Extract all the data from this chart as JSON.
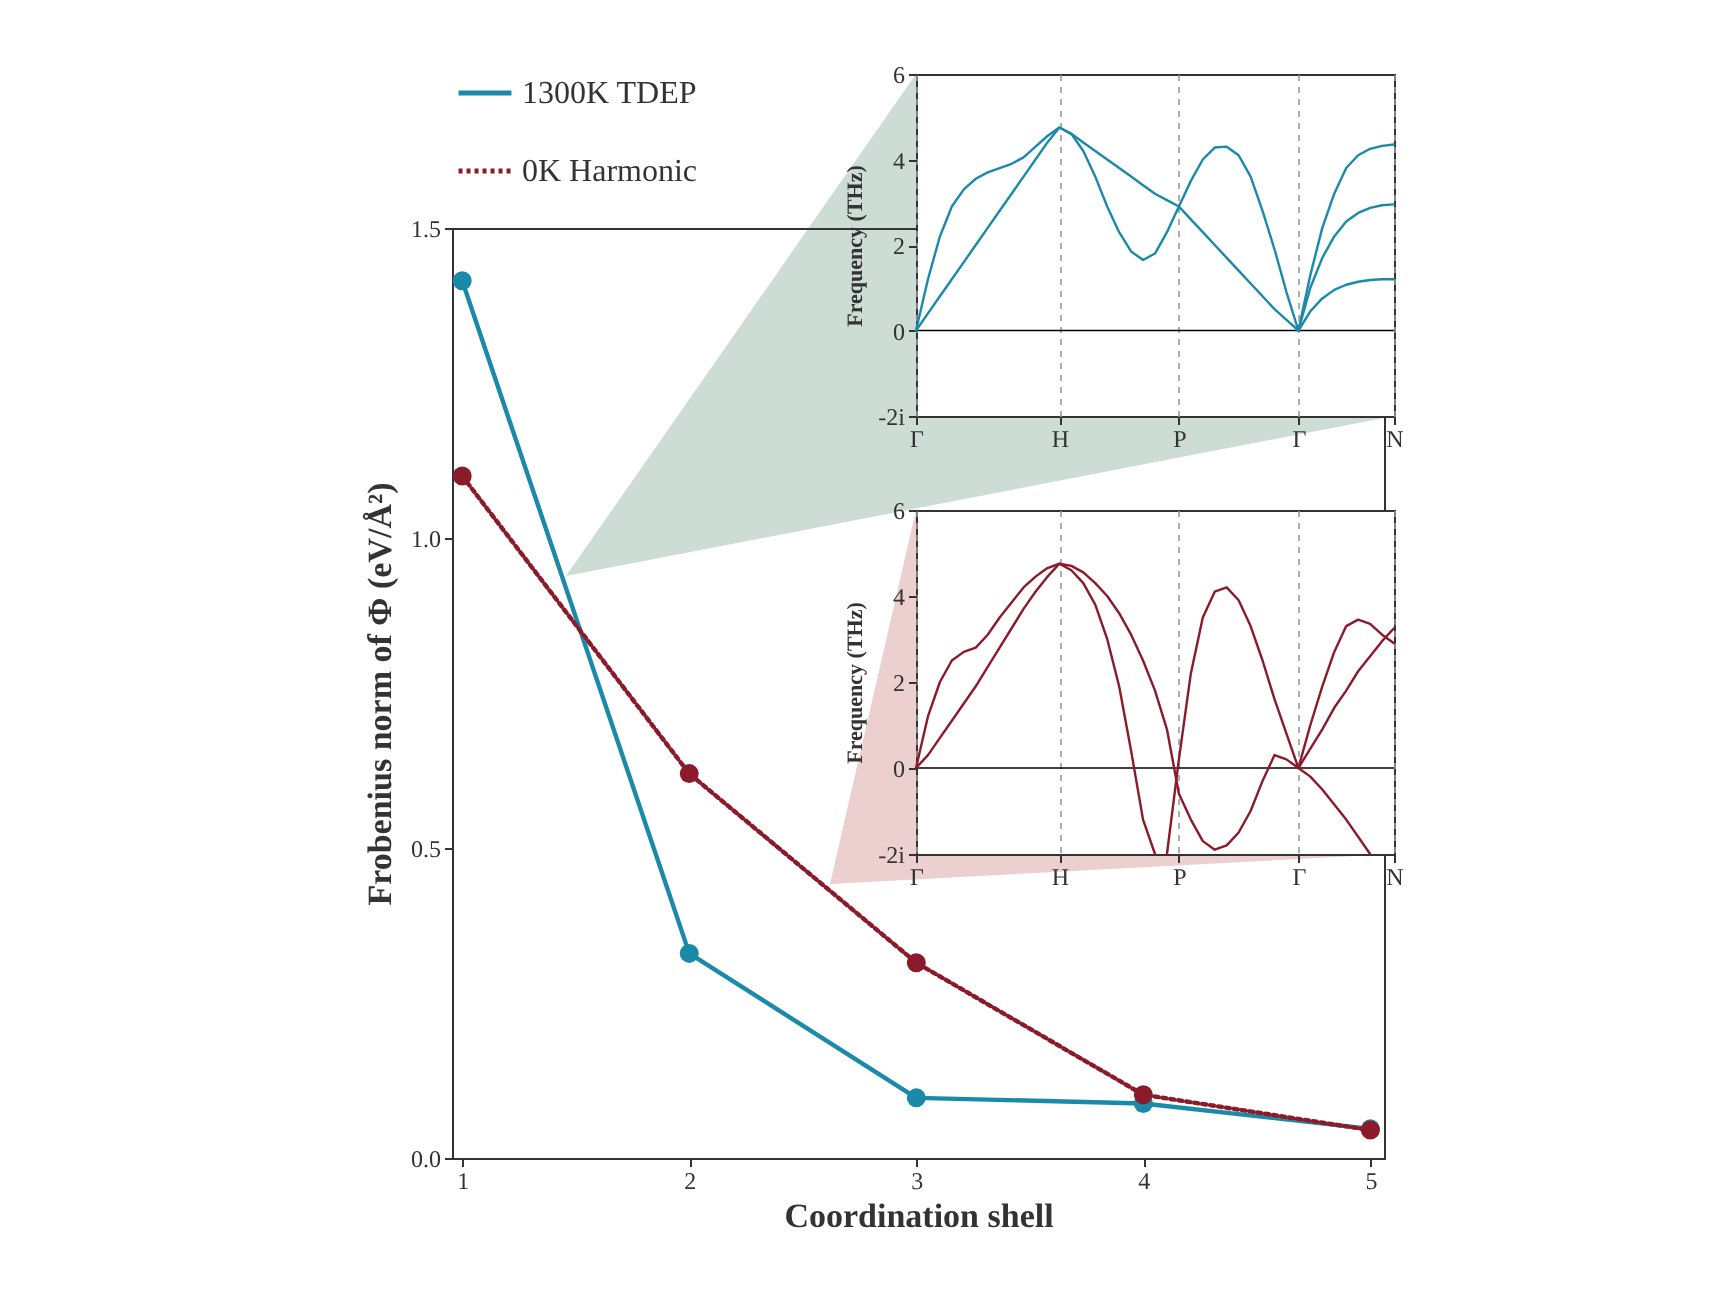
{
  "chart_data": [
    {
      "type": "line",
      "xlabel": "Coordination shell",
      "ylabel": "Frobenius norm of Φ (eV/Å²)",
      "x": [
        1,
        2,
        3,
        4,
        5
      ],
      "xlim": [
        0.955,
        5.06
      ],
      "xticks": [
        1,
        2,
        3,
        4,
        5
      ],
      "ylim": [
        0,
        1.5
      ],
      "yticks": [
        {
          "value": 0,
          "label": "0.0"
        },
        0.5,
        {
          "value": 1,
          "label": "1.0"
        },
        1.5
      ],
      "marker": "circle",
      "legend": "top left",
      "series": [
        {
          "name": "1300K TDEP",
          "color": "#1a8aa8",
          "line_style": "solid",
          "values": [
            1.415,
            0.33,
            0.097,
            0.088,
            0.047
          ]
        },
        {
          "name": "0K Harmonic",
          "color": "#8b1a2a",
          "line_style": "dotted",
          "values": [
            1.1,
            0.62,
            0.315,
            0.102,
            0.045
          ]
        }
      ]
    },
    {
      "type": "line",
      "ylabel": "Frequency (THz)",
      "categories": [
        "Γ",
        null,
        null,
        null,
        null,
        null,
        null,
        null,
        null,
        null,
        null,
        null,
        "H",
        null,
        null,
        null,
        null,
        null,
        null,
        null,
        null,
        null,
        "P",
        null,
        null,
        null,
        null,
        null,
        null,
        null,
        null,
        null,
        "Γ",
        null,
        null,
        null,
        null,
        null,
        null,
        null,
        "N"
      ],
      "ylim": [
        -2,
        6
      ],
      "yticks": [
        {
          "value": -2,
          "label": "-2i"
        },
        0,
        2,
        4,
        6
      ],
      "grid": "x",
      "ref_lines": [
        {
          "axis": "y",
          "value": 0,
          "color": "#000000",
          "line_style": "solid"
        }
      ],
      "series": [
        {
          "color": "#1a8aa8",
          "values": [
            0,
            1.2,
            2.2,
            2.9,
            3.3,
            3.55,
            3.7,
            3.8,
            3.9,
            4.05,
            4.3,
            4.55,
            4.75,
            4.6,
            4.2,
            3.6,
            2.9,
            2.3,
            1.85,
            1.65,
            1.8,
            2.3,
            2.9,
            3.5,
            4.0,
            4.28,
            4.3,
            4.1,
            3.6,
            2.8,
            1.9,
            0.9,
            0,
            1.3,
            2.4,
            3.2,
            3.8,
            4.1,
            4.25,
            4.32,
            4.35
          ]
        },
        {
          "color": "#1a8aa8",
          "values": [
            0,
            0.4,
            0.8,
            1.2,
            1.6,
            2.0,
            2.4,
            2.8,
            3.2,
            3.6,
            4.0,
            4.4,
            4.75,
            4.6,
            4.4,
            4.2,
            4.0,
            3.8,
            3.6,
            3.4,
            3.2,
            3.05,
            2.9,
            2.6,
            2.3,
            2.0,
            1.7,
            1.4,
            1.1,
            0.8,
            0.5,
            0.25,
            0,
            1.0,
            1.7,
            2.2,
            2.55,
            2.75,
            2.87,
            2.93,
            2.95
          ]
        },
        {
          "color": "#1a8aa8",
          "values": [
            null,
            null,
            null,
            null,
            null,
            null,
            null,
            null,
            null,
            null,
            null,
            null,
            null,
            null,
            null,
            null,
            null,
            null,
            null,
            null,
            null,
            null,
            null,
            null,
            null,
            null,
            null,
            null,
            null,
            null,
            null,
            null,
            0,
            0.45,
            0.75,
            0.95,
            1.07,
            1.14,
            1.18,
            1.2,
            1.2
          ]
        }
      ]
    },
    {
      "type": "line",
      "ylabel": "Frequency (THz)",
      "categories": [
        "Γ",
        null,
        null,
        null,
        null,
        null,
        null,
        null,
        null,
        null,
        null,
        null,
        "H",
        null,
        null,
        null,
        null,
        null,
        null,
        null,
        null,
        null,
        "P",
        null,
        null,
        null,
        null,
        null,
        null,
        null,
        null,
        null,
        "Γ",
        null,
        null,
        null,
        null,
        null,
        null,
        null,
        "N"
      ],
      "ylim": [
        -2,
        6
      ],
      "yticks": [
        {
          "value": -2,
          "label": "-2i"
        },
        0,
        2,
        4,
        6
      ],
      "grid": "x",
      "ref_lines": [
        {
          "axis": "y",
          "value": 0,
          "color": "#000000",
          "line_style": "solid"
        }
      ],
      "series": [
        {
          "color": "#8b1a2a",
          "values": [
            0,
            1.2,
            2.0,
            2.5,
            2.7,
            2.8,
            3.1,
            3.5,
            3.85,
            4.2,
            4.45,
            4.65,
            4.75,
            4.6,
            4.3,
            3.8,
            3.0,
            1.9,
            0.4,
            -1.2,
            -2,
            null,
            null,
            null,
            null,
            null,
            null,
            null,
            null,
            null,
            null,
            null,
            null,
            null,
            null,
            null,
            null,
            null,
            null,
            null,
            null
          ]
        },
        {
          "color": "#8b1a2a",
          "values": [
            0,
            0.3,
            0.7,
            1.1,
            1.5,
            1.9,
            2.35,
            2.8,
            3.25,
            3.7,
            4.1,
            4.45,
            4.75,
            4.7,
            4.55,
            4.3,
            4.0,
            3.6,
            3.1,
            2.5,
            1.8,
            0.9,
            -0.6,
            -1.2,
            -1.7,
            -1.9,
            -1.8,
            -1.5,
            -1.0,
            -0.3,
            0.3,
            0.2,
            0,
            -0.2,
            -0.5,
            -0.85,
            -1.2,
            -1.6,
            -2,
            null,
            null
          ]
        },
        {
          "color": "#8b1a2a",
          "values": [
            null,
            null,
            null,
            null,
            null,
            null,
            null,
            null,
            null,
            null,
            null,
            null,
            null,
            null,
            null,
            null,
            null,
            null,
            null,
            null,
            null,
            -2,
            0.2,
            2.2,
            3.5,
            4.1,
            4.2,
            3.9,
            3.3,
            2.5,
            1.6,
            0.8,
            0,
            0.45,
            0.9,
            1.4,
            1.8,
            2.25,
            2.6,
            2.95,
            3.25
          ]
        },
        {
          "color": "#8b1a2a",
          "values": [
            null,
            null,
            null,
            null,
            null,
            null,
            null,
            null,
            null,
            null,
            null,
            null,
            null,
            null,
            null,
            null,
            null,
            null,
            null,
            null,
            null,
            null,
            null,
            null,
            null,
            null,
            null,
            null,
            null,
            null,
            null,
            null,
            0,
            1.0,
            1.9,
            2.7,
            3.3,
            3.45,
            3.35,
            3.1,
            2.9
          ]
        }
      ]
    }
  ]
}
